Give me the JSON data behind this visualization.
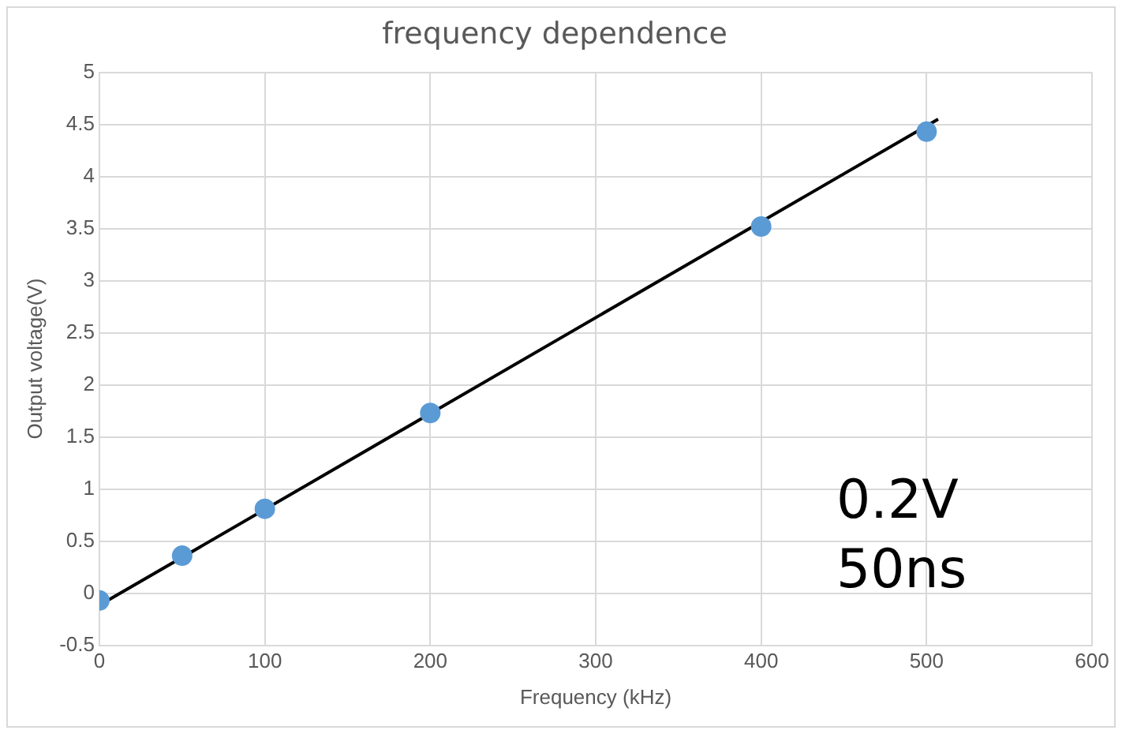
{
  "chart_data": {
    "type": "scatter",
    "title": "frequency dependence",
    "xlabel": "Frequency (kHz)",
    "ylabel": "Output voltage(V)",
    "series": [
      {
        "color": "#5b9bd5",
        "x": [
          0,
          50,
          100,
          200,
          400,
          500
        ],
        "values": [
          -0.07,
          0.36,
          0.81,
          1.73,
          3.52,
          4.43
        ],
        "marker": "circle"
      },
      {
        "type": "line",
        "color": "#000000",
        "x": [
          5,
          507
        ],
        "values": [
          -0.07,
          4.55
        ],
        "marker": "none"
      }
    ],
    "xlim": [
      0,
      600
    ],
    "xticks": [
      0,
      100,
      200,
      300,
      400,
      500,
      600
    ],
    "ylim": [
      -0.5,
      5
    ],
    "yticks": [
      -0.5,
      0,
      0.5,
      1,
      1.5,
      2,
      2.5,
      3,
      3.5,
      4,
      4.5,
      5
    ],
    "grid": true,
    "annotations": [
      "0.2V",
      "50ns"
    ]
  }
}
